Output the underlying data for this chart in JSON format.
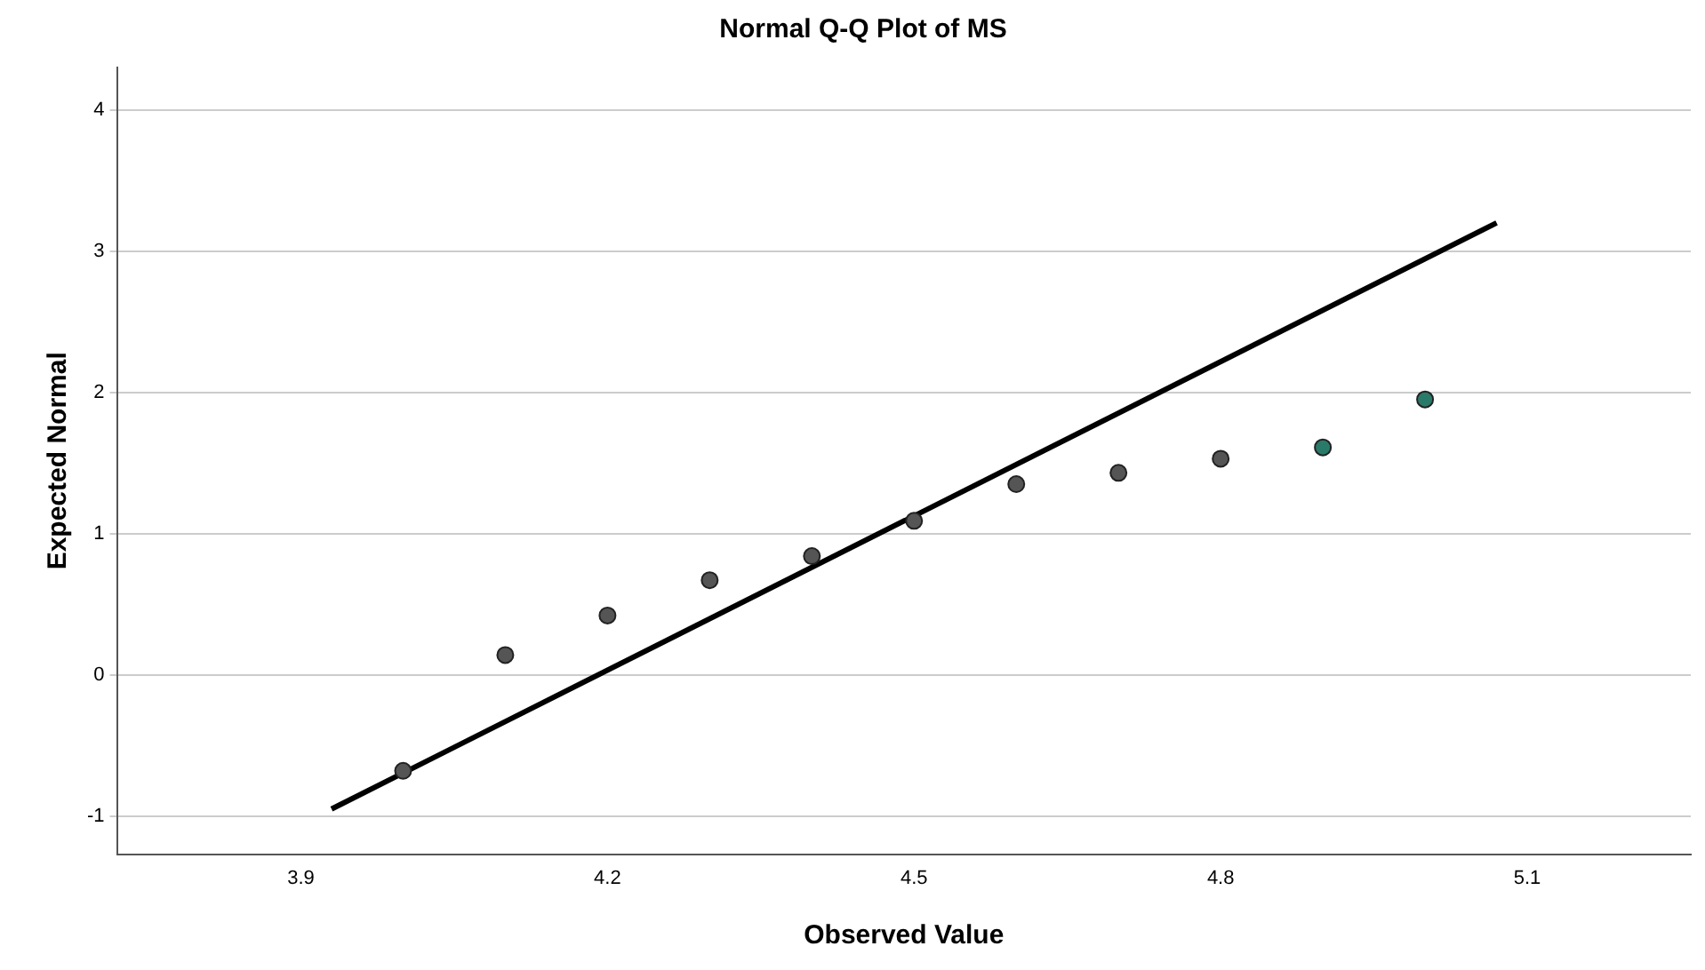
{
  "chart_data": {
    "type": "scatter",
    "title": "Normal Q-Q Plot of MS",
    "xlabel": "Observed Value",
    "ylabel": "Expected Normal",
    "x": [
      4.0,
      4.1,
      4.2,
      4.3,
      4.4,
      4.5,
      4.6,
      4.7,
      4.8,
      4.9,
      5.0
    ],
    "series": [
      {
        "type": "scatter",
        "marker": "circle",
        "values": [
          -0.68,
          0.14,
          0.42,
          0.67,
          0.84,
          1.09,
          1.35,
          1.43,
          1.53,
          1.61,
          1.95
        ],
        "colors": [
          "#555555",
          "#555555",
          "#555555",
          "#555555",
          "#555555",
          "#555555",
          "#555555",
          "#555555",
          "#555555",
          "#2a7a6a",
          "#2a7a6a"
        ]
      },
      {
        "type": "line",
        "x": [
          3.93,
          5.07
        ],
        "values": [
          -0.95,
          3.2
        ],
        "color": "#000000"
      }
    ],
    "xlim": [
      3.72,
      5.26
    ],
    "xticks": [
      3.9,
      4.2,
      4.5,
      4.8,
      5.1
    ],
    "ylim": [
      -1.27,
      4.3
    ],
    "yticks": [
      -1,
      0,
      1,
      2,
      3,
      4
    ],
    "grid": "y",
    "legend": false
  }
}
